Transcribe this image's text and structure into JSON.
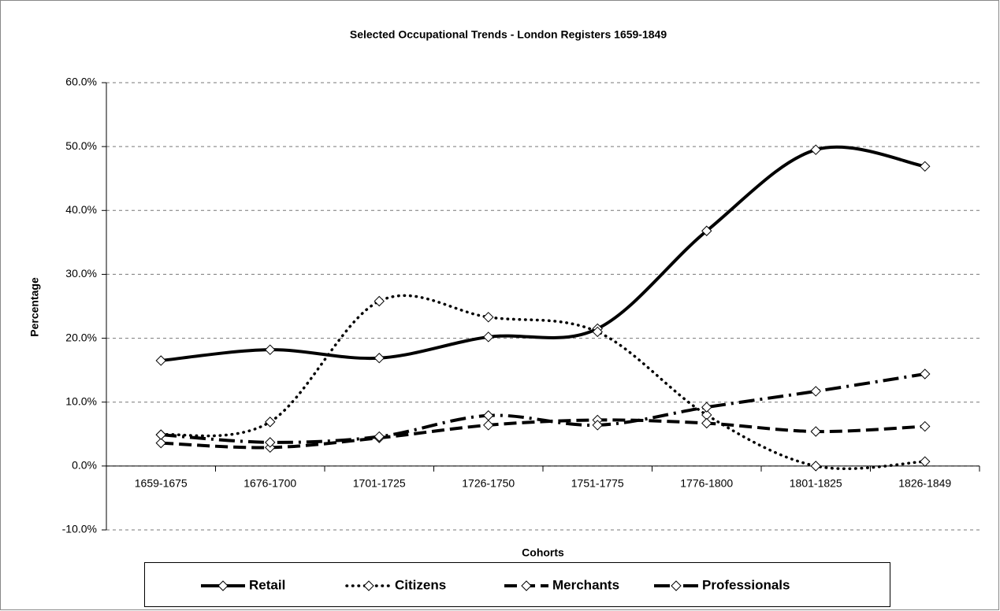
{
  "chart_data": {
    "type": "line",
    "title": "Selected Occupational Trends - London Registers 1659-1849",
    "x_label": "Cohorts",
    "y_label": "Percentage",
    "categories": [
      "1659-1675",
      "1676-1700",
      "1701-1725",
      "1726-1750",
      "1751-1775",
      "1776-1800",
      "1801-1825",
      "1826-1849"
    ],
    "series": [
      {
        "name": "Retail",
        "color": "#000000",
        "line_style": "solid",
        "values": [
          16.5,
          18.2,
          16.9,
          20.2,
          21.5,
          36.8,
          49.5,
          46.9
        ]
      },
      {
        "name": "Citizens",
        "color": "#000000",
        "line_style": "dotted",
        "values": [
          4.9,
          6.9,
          25.8,
          23.3,
          21.0,
          8.0,
          0.0,
          0.7
        ]
      },
      {
        "name": "Merchants",
        "color": "#000000",
        "line_style": "dashed",
        "values": [
          3.6,
          2.9,
          4.4,
          6.4,
          7.2,
          6.7,
          5.4,
          6.2
        ]
      },
      {
        "name": "Professionals",
        "color": "#000000",
        "line_style": "dashdot",
        "values": [
          4.9,
          3.7,
          4.6,
          7.9,
          6.4,
          9.2,
          11.7,
          14.4
        ]
      }
    ],
    "ylim": [
      -10,
      60
    ],
    "yticks": [
      {
        "value": -10,
        "label": "-10.0%"
      },
      {
        "value": 0,
        "label": "0.0%"
      },
      {
        "value": 10,
        "label": "10.0%"
      },
      {
        "value": 20,
        "label": "20.0%"
      },
      {
        "value": 30,
        "label": "30.0%"
      },
      {
        "value": 40,
        "label": "40.0%"
      },
      {
        "value": 50,
        "label": "50.0%"
      },
      {
        "value": 60,
        "label": "60.0%"
      }
    ],
    "grid": true,
    "legend": "bottom",
    "smooth": true
  }
}
